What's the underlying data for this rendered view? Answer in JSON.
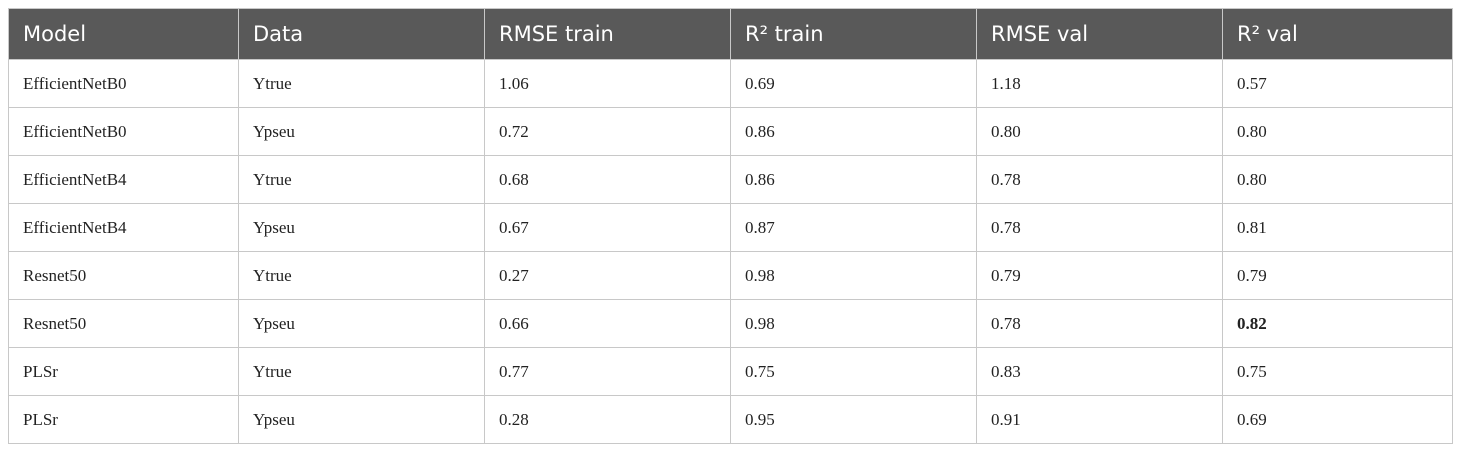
{
  "table": {
    "header": [
      "Model",
      "Data",
      "RMSE train",
      "R² train",
      "RMSE val",
      "R² val"
    ],
    "rows": [
      [
        "EfficientNetB0",
        "Ytrue",
        "1.06",
        "0.69",
        "1.18",
        "0.57"
      ],
      [
        "EfficientNetB0",
        "Ypseu",
        "0.72",
        "0.86",
        "0.80",
        "0.80"
      ],
      [
        "EfficientNetB4",
        "Ytrue",
        "0.68",
        "0.86",
        "0.78",
        "0.80"
      ],
      [
        "EfficientNetB4",
        "Ypseu",
        "0.67",
        "0.87",
        "0.78",
        "0.81"
      ],
      [
        "Resnet50",
        "Ytrue",
        "0.27",
        "0.98",
        "0.79",
        "0.79"
      ],
      [
        "Resnet50",
        "Ypseu",
        "0.66",
        "0.98",
        "0.78",
        "0.82"
      ],
      [
        "PLSr",
        "Ytrue",
        "0.77",
        "0.75",
        "0.83",
        "0.75"
      ],
      [
        "PLSr",
        "Ypseu",
        "0.28",
        "0.95",
        "0.91",
        "0.69"
      ]
    ]
  }
}
